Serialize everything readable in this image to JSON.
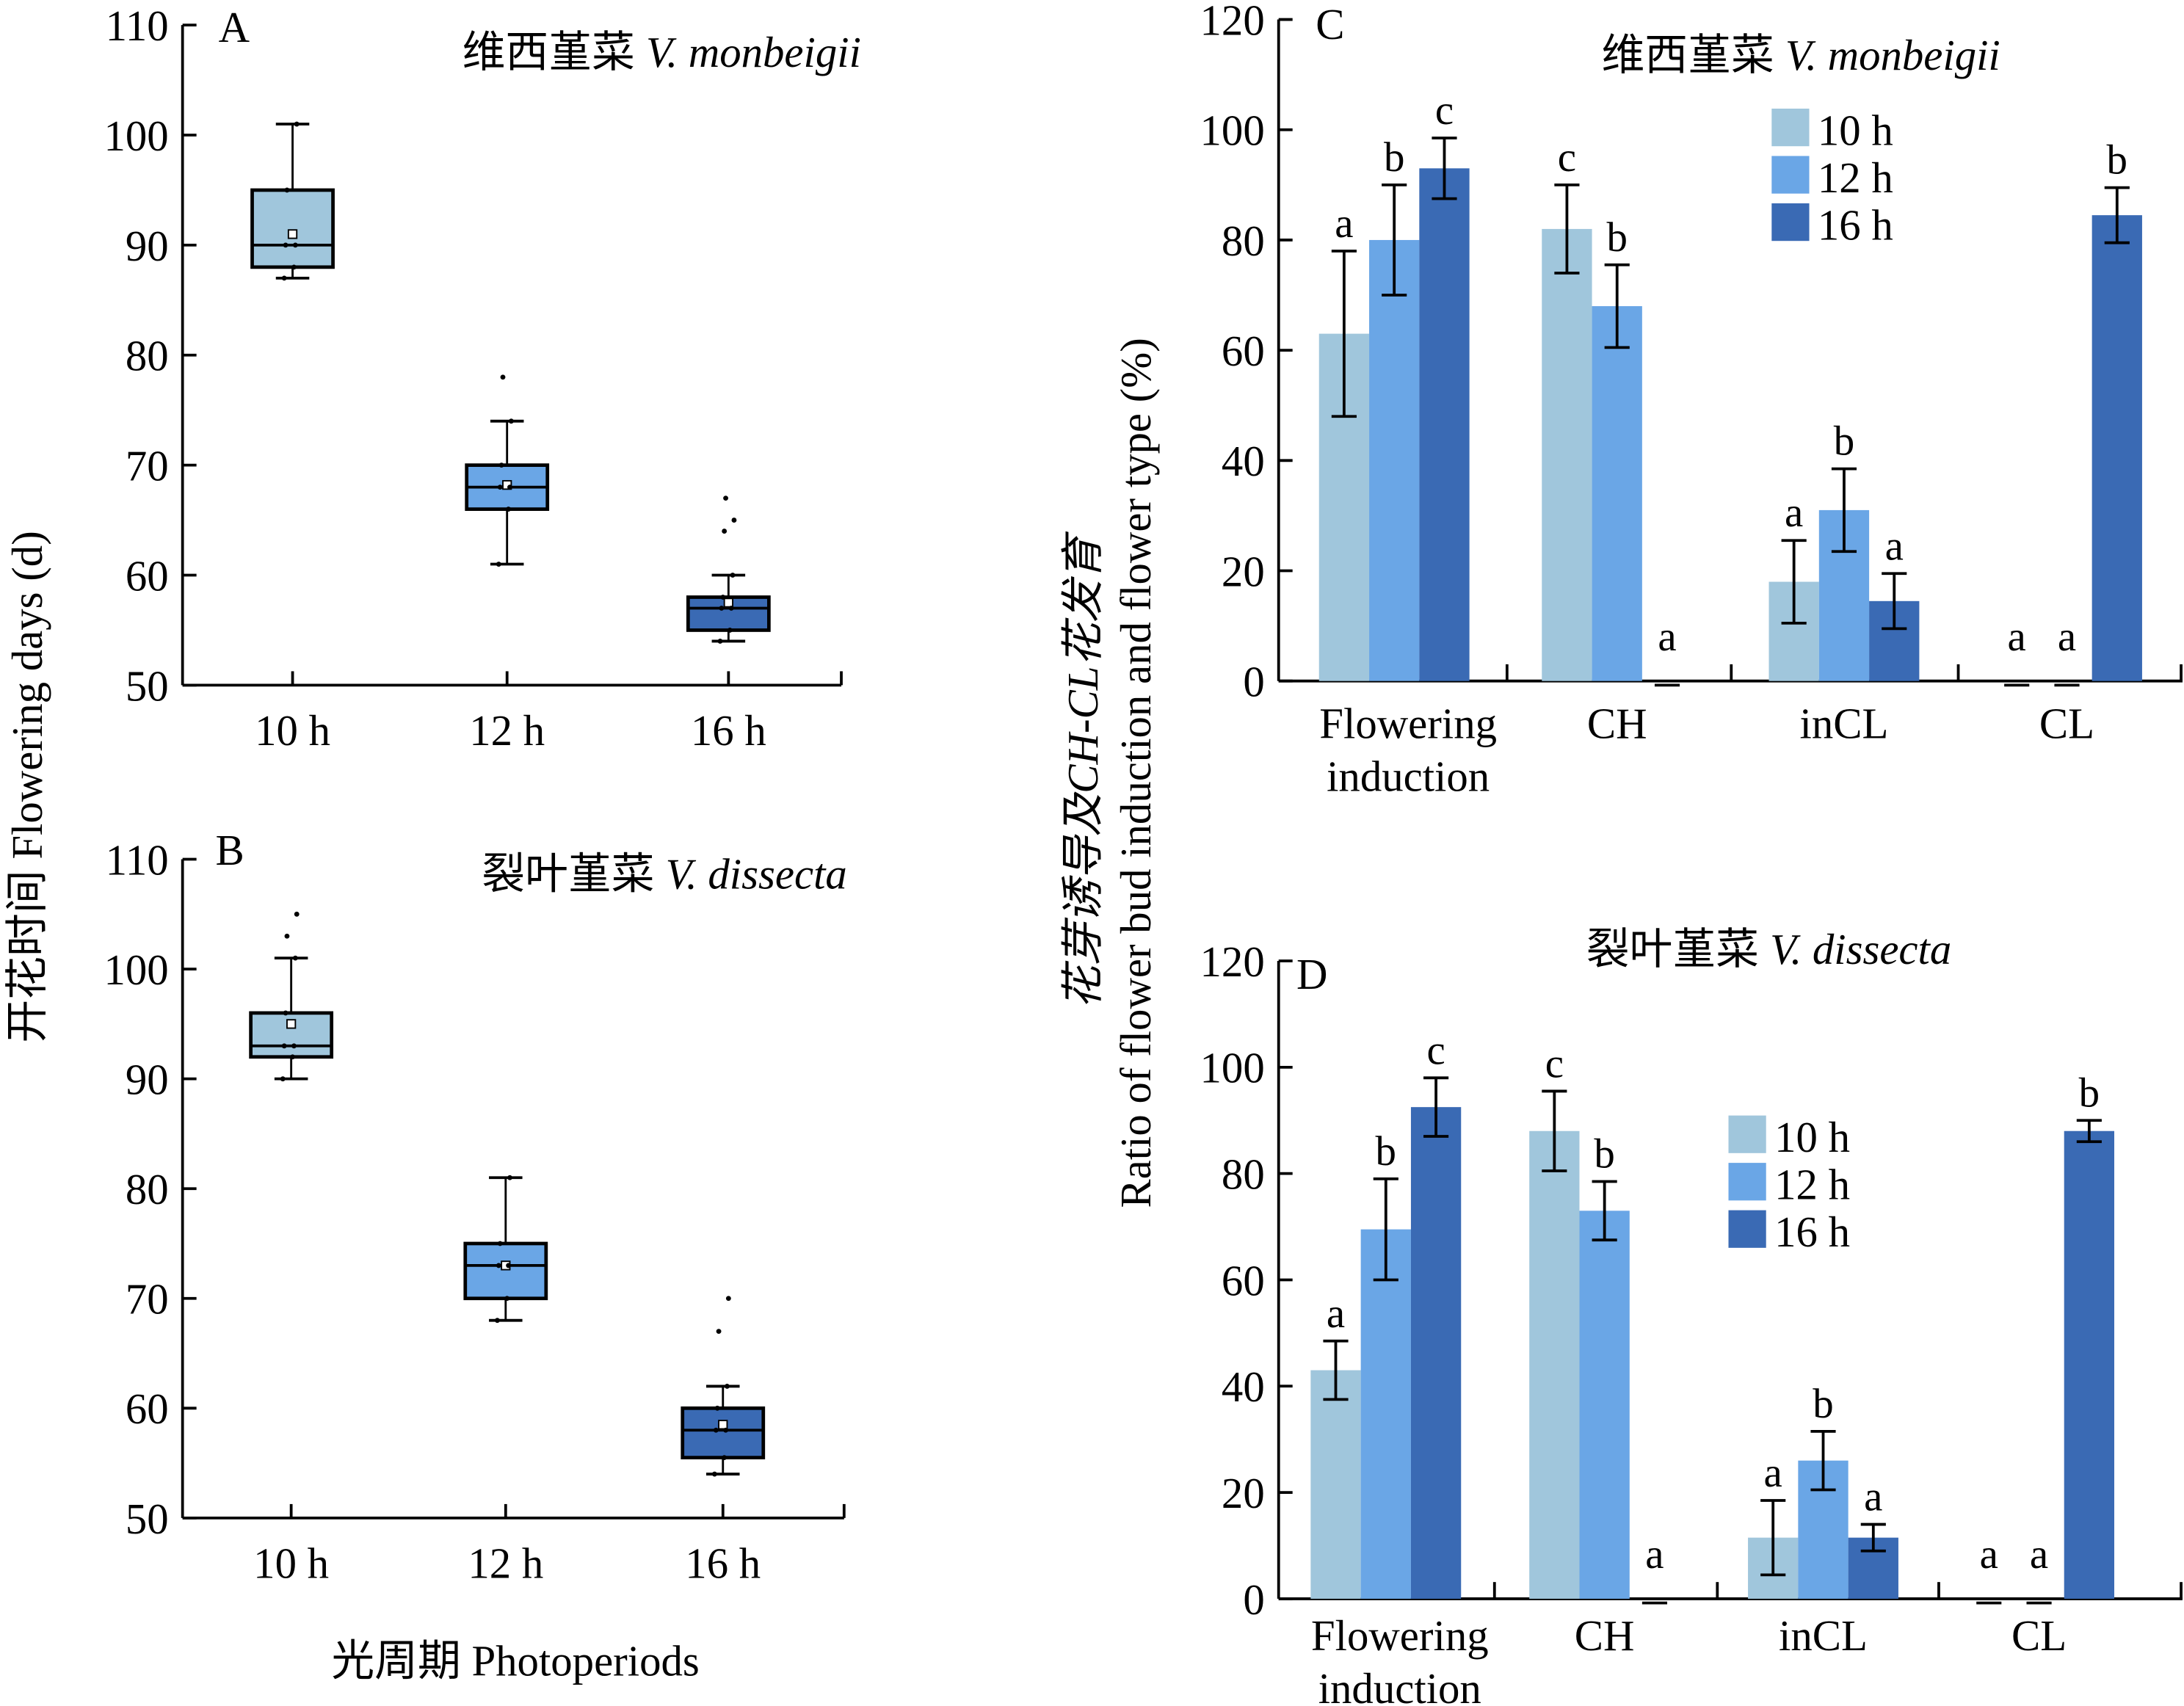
{
  "figure": {
    "left_ylabel": "开花时间 Flowering days (d)",
    "left_xlabel": "光周期 Photoperiods",
    "right_ylabel_cn": "花芽诱导及CH-CL花发育",
    "right_ylabel_en": "Ratio of flower bud induction and flower type (%)"
  },
  "colors": {
    "10 h": "#a0c6dc",
    "12 h": "#6aa6e6",
    "16 h": "#3a6ab4"
  },
  "chart_data": [
    {
      "id": "A",
      "type": "box",
      "panel_label": "A",
      "title_cn": "维西堇菜",
      "title_latin": "V. monbeigii",
      "categories": [
        "10 h",
        "12 h",
        "16 h"
      ],
      "ylim": [
        50,
        110
      ],
      "yticks": [
        50,
        60,
        70,
        80,
        90,
        100,
        110
      ],
      "boxes": [
        {
          "min": 87,
          "q1": 88,
          "median": 90,
          "q3": 95,
          "max": 101,
          "mean": 91,
          "outliers": []
        },
        {
          "min": 61,
          "q1": 66,
          "median": 68,
          "q3": 70,
          "max": 74,
          "mean": 68.2,
          "outliers": [
            78
          ]
        },
        {
          "min": 54,
          "q1": 55,
          "median": 57,
          "q3": 58,
          "max": 60,
          "mean": 57.5,
          "outliers": [
            64,
            65,
            67
          ]
        }
      ]
    },
    {
      "id": "B",
      "type": "box",
      "panel_label": "B",
      "title_cn": "裂叶堇菜",
      "title_latin": "V. dissecta",
      "categories": [
        "10 h",
        "12 h",
        "16 h"
      ],
      "ylim": [
        50,
        110
      ],
      "yticks": [
        50,
        60,
        70,
        80,
        90,
        100,
        110
      ],
      "boxes": [
        {
          "min": 90,
          "q1": 92,
          "median": 93,
          "q3": 96,
          "max": 101,
          "mean": 95,
          "outliers": [
            103,
            105
          ]
        },
        {
          "min": 68,
          "q1": 70,
          "median": 73,
          "q3": 75,
          "max": 81,
          "mean": 73,
          "outliers": []
        },
        {
          "min": 54,
          "q1": 55.5,
          "median": 58,
          "q3": 60,
          "max": 62,
          "mean": 58.5,
          "outliers": [
            67,
            70
          ]
        }
      ]
    },
    {
      "id": "C",
      "type": "bar",
      "panel_label": "C",
      "title_cn": "维西堇菜",
      "title_latin": "V. monbeigii",
      "categories": [
        "Flowering induction",
        "CH",
        "inCL",
        "CL"
      ],
      "ylim": [
        0,
        120
      ],
      "yticks": [
        0,
        20,
        40,
        60,
        80,
        100,
        120
      ],
      "legend": [
        "10 h",
        "12 h",
        "16 h"
      ],
      "series": [
        {
          "name": "10 h",
          "values": [
            63,
            82,
            18,
            0
          ],
          "errors": [
            15,
            8,
            7.5,
            0
          ],
          "letters": [
            "a",
            "c",
            "a",
            "a"
          ]
        },
        {
          "name": "12 h",
          "values": [
            80,
            68,
            31,
            0
          ],
          "errors": [
            10,
            7.5,
            7.5,
            0
          ],
          "letters": [
            "b",
            "b",
            "b",
            "a"
          ]
        },
        {
          "name": "16 h",
          "values": [
            93,
            0,
            14.5,
            84.5
          ],
          "errors": [
            5.5,
            0,
            5,
            5
          ],
          "letters": [
            "c",
            "a",
            "a",
            "b"
          ]
        }
      ]
    },
    {
      "id": "D",
      "type": "bar",
      "panel_label": "D",
      "title_cn": "裂叶堇菜",
      "title_latin": "V. dissecta",
      "categories": [
        "Flowering induction",
        "CH",
        "inCL",
        "CL"
      ],
      "ylim": [
        0,
        120
      ],
      "yticks": [
        0,
        20,
        40,
        60,
        80,
        100,
        120
      ],
      "legend": [
        "10 h",
        "12 h",
        "16 h"
      ],
      "series": [
        {
          "name": "10 h",
          "values": [
            43,
            88,
            11.5,
            0
          ],
          "errors": [
            5.5,
            7.5,
            7,
            0
          ],
          "letters": [
            "a",
            "c",
            "a",
            "a"
          ]
        },
        {
          "name": "12 h",
          "values": [
            69.5,
            73,
            26,
            0
          ],
          "errors": [
            9.5,
            5.5,
            5.5,
            0
          ],
          "letters": [
            "b",
            "b",
            "b",
            "a"
          ]
        },
        {
          "name": "16 h",
          "values": [
            92.5,
            0,
            11.5,
            88
          ],
          "errors": [
            5.5,
            0,
            2.5,
            2
          ],
          "letters": [
            "c",
            "a",
            "a",
            "b"
          ]
        }
      ]
    }
  ]
}
